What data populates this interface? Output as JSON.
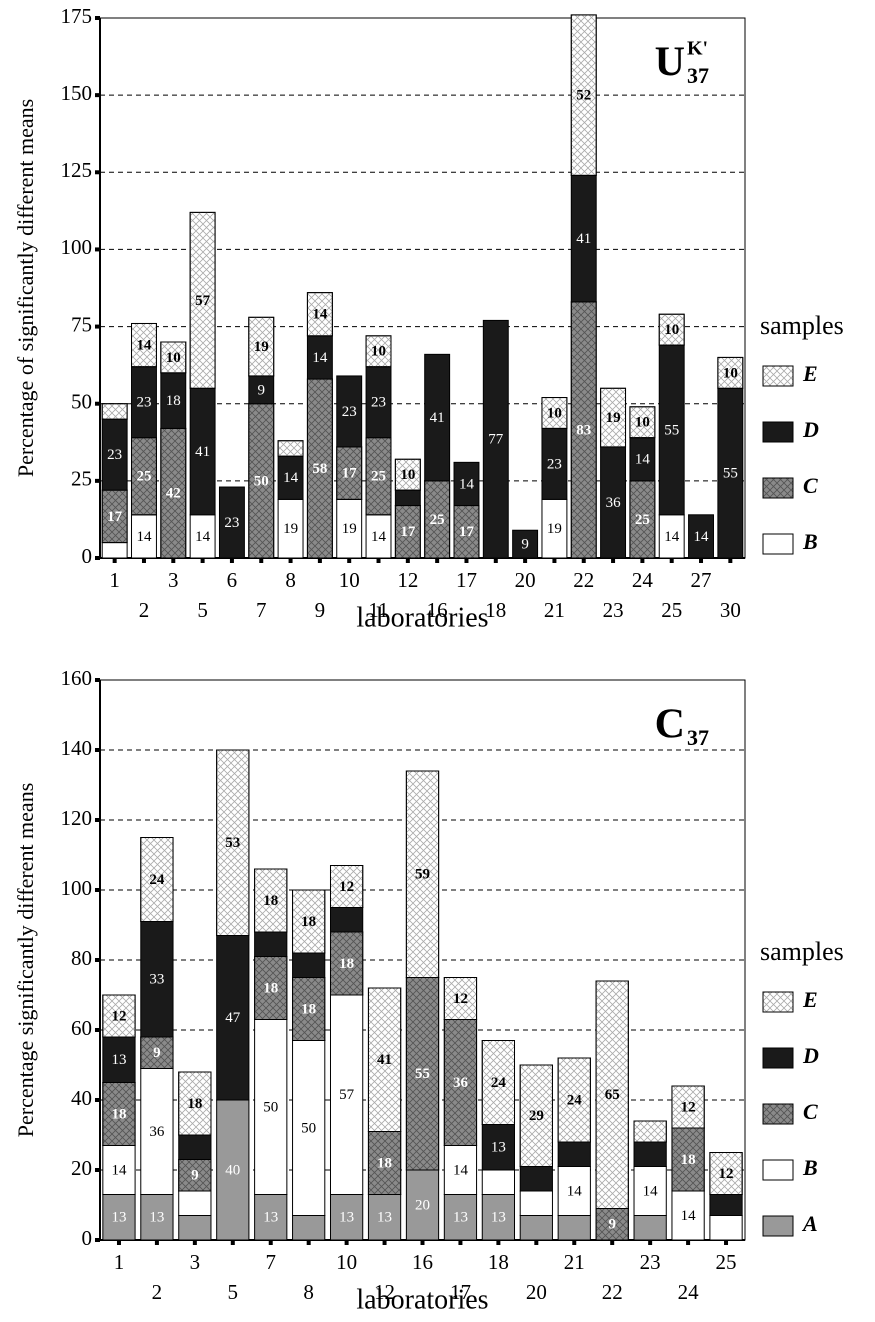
{
  "chart_data": [
    {
      "type": "stacked_bar",
      "y_label": "Percentage of significantly different means",
      "x_label": "laboratories",
      "legend_title": "samples",
      "annotation": {
        "text": "U",
        "superscript": "K'",
        "subscript": "37"
      },
      "categories": [
        "1",
        "2",
        "3",
        "5",
        "6",
        "7",
        "8",
        "9",
        "10",
        "11",
        "12",
        "16",
        "17",
        "18",
        "20",
        "21",
        "22",
        "23",
        "24",
        "25",
        "27",
        "30"
      ],
      "ylim": [
        0,
        175
      ],
      "yticks": [
        0,
        25,
        50,
        75,
        100,
        125,
        150,
        175
      ],
      "grid": true,
      "series": [
        {
          "name": "B",
          "color": "#ffffff",
          "values": [
            5,
            14,
            0,
            14,
            0,
            0,
            19,
            0,
            19,
            14,
            0,
            0,
            0,
            0,
            0,
            19,
            0,
            0,
            0,
            14,
            0,
            0
          ],
          "value_labels": [
            null,
            "14",
            null,
            "14",
            null,
            null,
            "19",
            null,
            "19",
            "14",
            null,
            null,
            null,
            null,
            null,
            "19",
            null,
            null,
            null,
            "14",
            null,
            null
          ]
        },
        {
          "name": "C",
          "color": "#8a8a8a",
          "pattern": "crosshatch",
          "values": [
            17,
            25,
            42,
            0,
            0,
            50,
            0,
            58,
            17,
            25,
            17,
            25,
            17,
            0,
            0,
            0,
            83,
            0,
            25,
            0,
            0,
            0
          ],
          "value_labels": [
            "17",
            "25",
            "42",
            null,
            null,
            "50",
            null,
            "58",
            "17",
            "25",
            "17",
            "25",
            "17",
            null,
            null,
            null,
            "83",
            null,
            "25",
            null,
            null,
            null
          ]
        },
        {
          "name": "D",
          "color": "#1a1a1a",
          "values": [
            23,
            23,
            18,
            41,
            23,
            9,
            14,
            14,
            23,
            23,
            5,
            41,
            14,
            77,
            9,
            23,
            41,
            36,
            14,
            55,
            14,
            55
          ],
          "value_labels": [
            "23",
            "23",
            "18",
            "41",
            "23",
            "9",
            "14",
            "14",
            "23",
            "23",
            null,
            "41",
            "14",
            "77",
            "9",
            "23",
            "41",
            "36",
            "14",
            "55",
            "14",
            "55"
          ]
        },
        {
          "name": "E",
          "color": "#ffffff",
          "pattern": "crosshatch",
          "values": [
            5,
            14,
            10,
            57,
            0,
            19,
            5,
            14,
            0,
            10,
            10,
            0,
            0,
            0,
            0,
            10,
            52,
            19,
            10,
            10,
            0,
            10
          ],
          "value_labels": [
            null,
            "14",
            "10",
            "57",
            null,
            "19",
            null,
            "14",
            null,
            "10",
            "10",
            null,
            null,
            null,
            null,
            "10",
            "52",
            "19",
            "10",
            "10",
            null,
            "10"
          ]
        }
      ]
    },
    {
      "type": "stacked_bar",
      "y_label": "Percentage significantly different means",
      "x_label": "laboratories",
      "legend_title": "samples",
      "annotation": {
        "text": "C",
        "subscript": "37"
      },
      "categories": [
        "1",
        "2",
        "3",
        "5",
        "7",
        "8",
        "10",
        "12",
        "16",
        "17",
        "18",
        "20",
        "21",
        "22",
        "23",
        "24",
        "25"
      ],
      "ylim": [
        0,
        160
      ],
      "yticks": [
        0,
        20,
        40,
        60,
        80,
        100,
        120,
        140,
        160
      ],
      "grid": true,
      "series": [
        {
          "name": "A",
          "color": "#999999",
          "values": [
            13,
            13,
            7,
            40,
            13,
            7,
            13,
            13,
            20,
            13,
            13,
            7,
            7,
            0,
            7,
            0,
            0
          ],
          "value_labels": [
            "13",
            "13",
            null,
            "40",
            "13",
            null,
            "13",
            "13",
            "20",
            "13",
            "13",
            null,
            null,
            null,
            null,
            null,
            null
          ]
        },
        {
          "name": "B",
          "color": "#ffffff",
          "values": [
            14,
            36,
            7,
            0,
            50,
            50,
            57,
            0,
            0,
            14,
            7,
            7,
            14,
            0,
            14,
            14,
            7
          ],
          "value_labels": [
            "14",
            "36",
            null,
            null,
            "50",
            "50",
            "57",
            null,
            null,
            "14",
            null,
            null,
            "14",
            null,
            "14",
            "14",
            null
          ]
        },
        {
          "name": "C",
          "color": "#8a8a8a",
          "pattern": "crosshatch",
          "values": [
            18,
            9,
            9,
            0,
            18,
            18,
            18,
            18,
            55,
            36,
            0,
            0,
            0,
            9,
            0,
            18,
            0
          ],
          "value_labels": [
            "18",
            "9",
            "9",
            null,
            "18",
            "18",
            "18",
            "18",
            "55",
            "36",
            null,
            null,
            null,
            "9",
            null,
            "18",
            null
          ]
        },
        {
          "name": "D",
          "color": "#1a1a1a",
          "values": [
            13,
            33,
            7,
            47,
            7,
            7,
            7,
            0,
            0,
            0,
            13,
            7,
            7,
            0,
            7,
            0,
            6
          ],
          "value_labels": [
            "13",
            "33",
            null,
            "47",
            null,
            null,
            null,
            null,
            null,
            null,
            "13",
            null,
            null,
            null,
            null,
            null,
            null
          ]
        },
        {
          "name": "E",
          "color": "#ffffff",
          "pattern": "crosshatch",
          "values": [
            12,
            24,
            18,
            53,
            18,
            18,
            12,
            41,
            59,
            12,
            24,
            29,
            24,
            65,
            6,
            12,
            12
          ],
          "value_labels": [
            "12",
            "24",
            "18",
            "53",
            "18",
            "18",
            "12",
            "41",
            "59",
            "12",
            "24",
            "29",
            "24",
            "65",
            null,
            "12",
            "12"
          ]
        }
      ]
    }
  ]
}
